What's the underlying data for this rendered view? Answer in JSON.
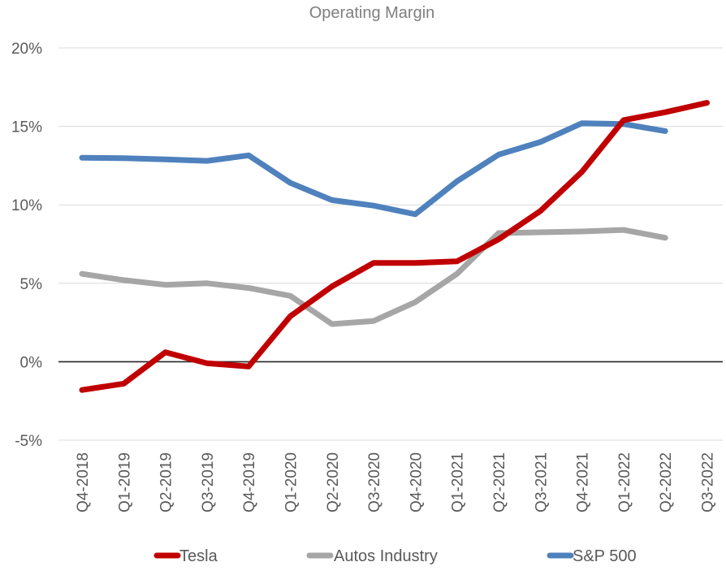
{
  "chart_data": {
    "type": "line",
    "title": "Operating Margin",
    "xlabel": "",
    "ylabel": "",
    "categories": [
      "Q4-2018",
      "Q1-2019",
      "Q2-2019",
      "Q3-2019",
      "Q4-2019",
      "Q1-2020",
      "Q2-2020",
      "Q3-2020",
      "Q4-2020",
      "Q1-2021",
      "Q2-2021",
      "Q3-2021",
      "Q4-2021",
      "Q1-2022",
      "Q2-2022",
      "Q3-2022"
    ],
    "ylim": [
      -5,
      20
    ],
    "yticks": [
      -5,
      0,
      5,
      10,
      15,
      20
    ],
    "ytick_labels": [
      "-5%",
      "0%",
      "5%",
      "10%",
      "15%",
      "20%"
    ],
    "grid": true,
    "legend_position": "bottom",
    "series": [
      {
        "name": "Tesla",
        "color": "#c00000",
        "values": [
          -1.8,
          -1.4,
          0.6,
          -0.1,
          -0.3,
          2.9,
          4.8,
          6.3,
          6.3,
          6.4,
          7.8,
          9.6,
          12.1,
          15.4,
          15.9,
          16.5
        ]
      },
      {
        "name": "Autos Industry",
        "color": "#a6a6a6",
        "values": [
          5.6,
          5.2,
          4.9,
          5.0,
          4.7,
          4.2,
          2.4,
          2.6,
          3.8,
          5.6,
          8.2,
          8.25,
          8.3,
          8.4,
          7.9,
          null
        ]
      },
      {
        "name": "S&P 500",
        "color": "#4f81bd",
        "values": [
          13.0,
          12.97,
          12.9,
          12.8,
          13.15,
          11.4,
          10.3,
          9.95,
          9.4,
          11.5,
          13.2,
          14.0,
          15.2,
          15.15,
          14.7,
          null
        ]
      }
    ]
  }
}
